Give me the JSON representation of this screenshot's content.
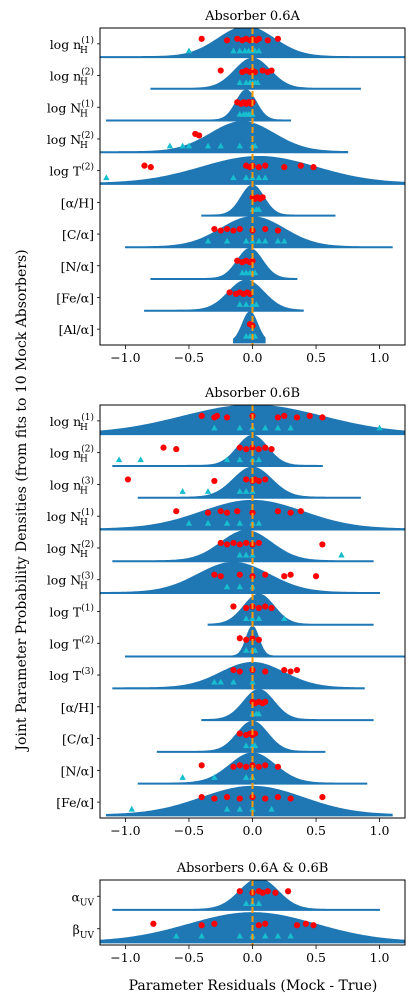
{
  "figure": {
    "ylabel": "Joint Parameter Probability Densities (from fits to 10 Mock Absorbers)",
    "xlabel": "Parameter Residuals (Mock - True)"
  },
  "colors": {
    "density": "#1f77b4",
    "mock_marker": "#ff0000",
    "true_marker": "#17becf",
    "zero_line": "#ff9900"
  },
  "chart_data": [
    {
      "type": "violin",
      "title": "Absorber 0.6A",
      "xlim": [
        -1.2,
        1.2
      ],
      "xticks": [
        -1.0,
        -0.5,
        0.0,
        0.5,
        1.0
      ],
      "xtick_labels": [
        "−1.0",
        "−0.5",
        "0.0",
        "0.5",
        "1.0"
      ],
      "rows": [
        {
          "label_main": "log n",
          "label_sub": "H",
          "label_sup": "(1)",
          "center": -0.05,
          "width": 0.22,
          "amp": 0.95,
          "range": [
            -1.25,
            1.25
          ],
          "red": [
            -0.4,
            -0.2,
            -0.12,
            -0.08,
            -0.05,
            -0.02,
            0.0,
            0.03,
            0.05,
            0.12,
            0.2
          ],
          "cyan": [
            -0.5,
            -0.15,
            -0.1,
            -0.06,
            -0.03,
            0.0,
            0.02,
            0.05
          ]
        },
        {
          "label_main": "log n",
          "label_sub": "H",
          "label_sup": "(2)",
          "center": 0.0,
          "width": 0.14,
          "amp": 0.95,
          "range": [
            -0.8,
            0.85
          ],
          "red": [
            -0.25,
            -0.08,
            -0.05,
            -0.02,
            0.0,
            0.02,
            0.08,
            0.12,
            0.15
          ],
          "cyan": [
            -0.1,
            -0.05,
            -0.02,
            0.0,
            0.02,
            0.04
          ]
        },
        {
          "label_main": "log N",
          "label_sub": "H",
          "label_sup": "(1)",
          "center": -0.05,
          "width": 0.08,
          "amp": 0.95,
          "range": [
            -1.15,
            0.3
          ],
          "red": [
            -0.12,
            -0.09,
            -0.07,
            -0.05,
            -0.03,
            -0.01,
            0.0
          ],
          "cyan": [
            -0.1,
            -0.07,
            -0.05,
            -0.03,
            -0.01,
            0.0
          ]
        },
        {
          "label_main": "log N",
          "label_sub": "H",
          "label_sup": "(2)",
          "center": -0.08,
          "width": 0.25,
          "amp": 0.95,
          "range": [
            -1.2,
            0.75
          ],
          "red": [
            -0.45,
            -0.42
          ],
          "cyan": [
            -0.65,
            -0.55,
            -0.5,
            -0.35,
            -0.25,
            -0.1,
            0.0,
            0.02
          ]
        },
        {
          "label_main": "log T",
          "label_sub": "",
          "label_sup": "(2)",
          "center": 0.05,
          "width": 0.45,
          "amp": 0.85,
          "range": [
            -1.2,
            1.2
          ],
          "red": [
            -0.85,
            -0.8,
            -0.05,
            -0.02,
            0.0,
            0.05,
            0.1,
            0.25,
            0.38,
            0.48
          ],
          "cyan": [
            -1.15,
            -0.15,
            -0.05,
            0.0,
            0.05,
            0.1
          ]
        },
        {
          "label_main": "[α/H]",
          "label_sub": "",
          "label_sup": "",
          "center": 0.0,
          "width": 0.09,
          "amp": 0.95,
          "range": [
            -0.4,
            0.65
          ],
          "red": [
            0.0,
            0.02,
            0.04,
            0.06,
            0.08
          ],
          "cyan": [
            0.0,
            0.03,
            0.05
          ]
        },
        {
          "label_main": "[C/α]",
          "label_sub": "",
          "label_sup": "",
          "center": 0.0,
          "width": 0.25,
          "amp": 0.95,
          "range": [
            -1.0,
            1.1
          ],
          "red": [
            -0.3,
            -0.25,
            -0.2,
            -0.15,
            -0.1,
            0.0,
            0.1,
            0.2
          ],
          "cyan": [
            -0.35,
            -0.2,
            -0.05,
            0.0,
            0.05,
            0.1,
            0.2,
            0.25
          ]
        },
        {
          "label_main": "[N/α]",
          "label_sub": "",
          "label_sup": "",
          "center": -0.02,
          "width": 0.1,
          "amp": 0.95,
          "range": [
            -0.8,
            0.35
          ],
          "red": [
            -0.12,
            -0.08,
            -0.05,
            -0.02,
            0.0
          ],
          "cyan": [
            -0.08,
            -0.05,
            -0.02,
            0.0,
            0.02
          ]
        },
        {
          "label_main": "[Fe/α]",
          "label_sub": "",
          "label_sup": "",
          "center": -0.05,
          "width": 0.14,
          "amp": 0.95,
          "range": [
            -0.85,
            0.4
          ],
          "red": [
            -0.18,
            -0.13,
            -0.1,
            -0.07,
            -0.04,
            -0.02
          ],
          "cyan": [
            -0.1,
            -0.05,
            0.0,
            0.03
          ]
        },
        {
          "label_main": "[Al/α]",
          "label_sub": "",
          "label_sup": "",
          "center": -0.02,
          "width": 0.06,
          "amp": 0.95,
          "range": [
            -0.15,
            0.1
          ],
          "red": [
            -0.02,
            0.0
          ],
          "cyan": [
            -0.05,
            -0.02,
            0.0,
            0.02
          ]
        }
      ]
    },
    {
      "type": "violin",
      "title": "Absorber 0.6B",
      "xlim": [
        -1.2,
        1.2
      ],
      "xticks": [
        -1.0,
        -0.5,
        0.0,
        0.5,
        1.0
      ],
      "xtick_labels": [
        "−1.0",
        "−0.5",
        "0.0",
        "0.5",
        "1.0"
      ],
      "rows": [
        {
          "label_main": "log n",
          "label_sub": "H",
          "label_sup": "(1)",
          "center": 0.0,
          "width": 0.55,
          "amp": 0.9,
          "range": [
            -1.2,
            1.2
          ],
          "red": [
            -0.4,
            -0.3,
            -0.28,
            -0.2,
            0.0,
            0.2,
            0.25,
            0.35,
            0.45,
            0.55
          ],
          "cyan": [
            -0.3,
            -0.1,
            0.0,
            0.1,
            0.2,
            0.3,
            1.0
          ]
        },
        {
          "label_main": "log n",
          "label_sub": "H",
          "label_sup": "(2)",
          "center": 0.0,
          "width": 0.12,
          "amp": 0.95,
          "range": [
            -1.1,
            0.55
          ],
          "red": [
            -0.7,
            -0.6,
            -0.1,
            -0.05,
            0.0,
            0.05,
            0.1,
            0.15
          ],
          "cyan": [
            -1.05,
            -0.88,
            -0.2,
            -0.1,
            0.0,
            0.05
          ]
        },
        {
          "label_main": "log n",
          "label_sub": "H",
          "label_sup": "(3)",
          "center": 0.0,
          "width": 0.15,
          "amp": 0.95,
          "range": [
            -0.9,
            0.85
          ],
          "red": [
            -0.98,
            -0.3,
            -0.05,
            0.0,
            0.02,
            0.05,
            0.1
          ],
          "cyan": [
            -0.55,
            -0.35,
            -0.1,
            -0.05,
            0.0
          ]
        },
        {
          "label_main": "log N",
          "label_sub": "H",
          "label_sup": "(1)",
          "center": 0.0,
          "width": 0.4,
          "amp": 0.9,
          "range": [
            -1.2,
            1.2
          ],
          "red": [
            -0.6,
            -0.35,
            -0.25,
            -0.2,
            -0.12,
            0.0,
            0.2,
            0.3,
            0.38
          ],
          "cyan": [
            -0.5,
            -0.35,
            -0.2,
            -0.1,
            0.0,
            0.05
          ]
        },
        {
          "label_main": "log N",
          "label_sub": "H",
          "label_sup": "(2)",
          "center": -0.05,
          "width": 0.2,
          "amp": 0.95,
          "range": [
            -1.1,
            0.95
          ],
          "red": [
            -0.25,
            -0.2,
            -0.15,
            -0.1,
            -0.05,
            0.0,
            0.05,
            0.55
          ],
          "cyan": [
            -0.1,
            -0.05,
            0.0,
            0.7
          ]
        },
        {
          "label_main": "log N",
          "label_sub": "H",
          "label_sup": "(3)",
          "center": -0.15,
          "width": 0.28,
          "amp": 0.95,
          "range": [
            -1.2,
            1.0
          ],
          "red": [
            -0.3,
            -0.25,
            -0.1,
            0.0,
            0.1,
            0.25,
            0.3,
            0.5
          ],
          "cyan": [
            -0.2,
            -0.1,
            0.0
          ]
        },
        {
          "label_main": "log T",
          "label_sub": "",
          "label_sup": "(1)",
          "center": 0.05,
          "width": 0.12,
          "amp": 0.95,
          "range": [
            -0.35,
            0.95
          ],
          "red": [
            -0.15,
            -0.05,
            0.0,
            0.05,
            0.1,
            0.15
          ],
          "cyan": [
            -0.05,
            0.0,
            0.05,
            0.25
          ]
        },
        {
          "label_main": "log T",
          "label_sub": "",
          "label_sup": "(2)",
          "center": 0.0,
          "width": 0.05,
          "amp": 0.95,
          "range": [
            -1.0,
            1.2
          ],
          "red": [
            -0.1,
            -0.05,
            0.0,
            0.05
          ],
          "cyan": [
            -0.05,
            0.0,
            0.02
          ]
        },
        {
          "label_main": "log T",
          "label_sub": "",
          "label_sup": "(3)",
          "center": 0.0,
          "width": 0.25,
          "amp": 0.8,
          "range": [
            -1.1,
            0.88
          ],
          "red": [
            -0.15,
            -0.1,
            0.0,
            0.1,
            0.25,
            0.3,
            0.35
          ],
          "cyan": [
            -0.3,
            -0.25,
            -0.15,
            0.0
          ]
        },
        {
          "label_main": "[α/H]",
          "label_sub": "",
          "label_sup": "",
          "center": 0.05,
          "width": 0.12,
          "amp": 0.95,
          "range": [
            -0.4,
            0.95
          ],
          "red": [
            0.0,
            0.02,
            0.05,
            0.08,
            0.1
          ],
          "cyan": [
            0.0,
            0.03,
            0.05
          ]
        },
        {
          "label_main": "[C/α]",
          "label_sub": "",
          "label_sup": "",
          "center": 0.0,
          "width": 0.12,
          "amp": 0.95,
          "range": [
            -0.75,
            0.57
          ],
          "red": [
            -0.1,
            -0.05,
            -0.02,
            0.0,
            0.02
          ],
          "cyan": [
            -0.05,
            0.0,
            0.02
          ]
        },
        {
          "label_main": "[N/α]",
          "label_sub": "",
          "label_sup": "",
          "center": 0.0,
          "width": 0.18,
          "amp": 0.95,
          "range": [
            -0.9,
            0.9
          ],
          "red": [
            -0.4,
            -0.15,
            -0.1,
            -0.05,
            0.0,
            0.05,
            0.1,
            0.2
          ],
          "cyan": [
            -0.55,
            -0.3,
            -0.05,
            0.0
          ]
        },
        {
          "label_main": "[Fe/α]",
          "label_sub": "",
          "label_sup": "",
          "center": 0.0,
          "width": 0.4,
          "amp": 0.9,
          "range": [
            -1.15,
            1.1
          ],
          "red": [
            -0.4,
            -0.3,
            -0.2,
            -0.1,
            0.0,
            0.1,
            0.2,
            0.3,
            0.55
          ],
          "cyan": [
            -0.95,
            -0.2,
            -0.1,
            0.0,
            0.15
          ]
        }
      ]
    },
    {
      "type": "violin",
      "title": "Absorbers 0.6A & 0.6B",
      "xlim": [
        -1.2,
        1.2
      ],
      "xticks": [
        -1.0,
        -0.5,
        0.0,
        0.5,
        1.0
      ],
      "xtick_labels": [
        "−1.0",
        "−0.5",
        "0.0",
        "0.5",
        "1.0"
      ],
      "rows": [
        {
          "label_main": "α",
          "label_sub": "UV",
          "label_sup": "",
          "center": 0.05,
          "width": 0.15,
          "amp": 0.95,
          "range": [
            -1.1,
            1.0
          ],
          "red": [
            -0.1,
            0.0,
            0.05,
            0.08,
            0.12,
            0.18,
            0.28
          ],
          "cyan": [
            -0.05,
            0.0,
            0.05
          ]
        },
        {
          "label_main": "β",
          "label_sub": "UV",
          "label_sup": "",
          "center": 0.0,
          "width": 0.5,
          "amp": 0.9,
          "range": [
            -1.2,
            1.2
          ],
          "red": [
            -0.78,
            -0.4,
            -0.3,
            0.05,
            0.1,
            0.35,
            0.42,
            0.48
          ],
          "cyan": [
            -0.6,
            -0.4,
            -0.1,
            0.0,
            0.1,
            0.2,
            0.3
          ]
        }
      ]
    }
  ]
}
